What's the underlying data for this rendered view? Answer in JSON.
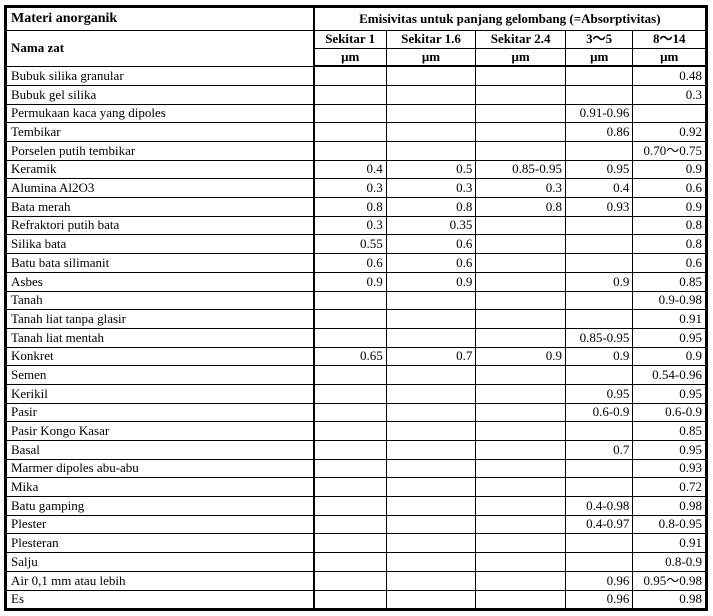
{
  "table": {
    "corner_title": "Materi anorganik",
    "name_header": "Nama zat",
    "span_header": "Emisivitas untuk panjang gelombang (=Absorptivitas)",
    "columns": [
      {
        "label": "Sekitar 1",
        "unit": "μm"
      },
      {
        "label": "Sekitar 1.6",
        "unit": "μm"
      },
      {
        "label": "Sekitar 2.4",
        "unit": "μm"
      },
      {
        "label": "3〜5",
        "unit": "μm"
      },
      {
        "label": "8〜14",
        "unit": "μm"
      }
    ],
    "rows": [
      {
        "name": "Bubuk silika granular",
        "values": [
          "",
          "",
          "",
          "",
          "0.48"
        ]
      },
      {
        "name": "Bubuk gel silika",
        "values": [
          "",
          "",
          "",
          "",
          "0.3"
        ]
      },
      {
        "name": "Permukaan kaca yang dipoles",
        "values": [
          "",
          "",
          "",
          "0.91-0.96",
          ""
        ]
      },
      {
        "name": "Tembikar",
        "values": [
          "",
          "",
          "",
          "0.86",
          "0.92"
        ]
      },
      {
        "name": "Porselen putih tembikar",
        "values": [
          "",
          "",
          "",
          "",
          "0.70〜0.75"
        ]
      },
      {
        "name": "Keramik",
        "values": [
          "0.4",
          "0.5",
          "0.85-0.95",
          "0.95",
          "0.9"
        ]
      },
      {
        "name": "Alumina Al2O3",
        "values": [
          "0.3",
          "0.3",
          "0.3",
          "0.4",
          "0.6"
        ]
      },
      {
        "name": "Bata merah",
        "values": [
          "0.8",
          "0.8",
          "0.8",
          "0.93",
          "0.9"
        ]
      },
      {
        "name": "Refraktori putih bata",
        "values": [
          "0.3",
          "0.35",
          "",
          "",
          "0.8"
        ]
      },
      {
        "name": "Silika bata",
        "values": [
          "0.55",
          "0.6",
          "",
          "",
          "0.8"
        ]
      },
      {
        "name": "Batu bata silimanit",
        "values": [
          "0.6",
          "0.6",
          "",
          "",
          "0.6"
        ]
      },
      {
        "name": "Asbes",
        "values": [
          "0.9",
          "0.9",
          "",
          "0.9",
          "0.85"
        ]
      },
      {
        "name": "Tanah",
        "values": [
          "",
          "",
          "",
          "",
          "0.9-0.98"
        ]
      },
      {
        "name": "Tanah liat tanpa glasir",
        "values": [
          "",
          "",
          "",
          "",
          "0.91"
        ]
      },
      {
        "name": "Tanah liat mentah",
        "values": [
          "",
          "",
          "",
          "0.85-0.95",
          "0.95"
        ]
      },
      {
        "name": "Konkret",
        "values": [
          "0.65",
          "0.7",
          "0.9",
          "0.9",
          "0.9"
        ]
      },
      {
        "name": "Semen",
        "values": [
          "",
          "",
          "",
          "",
          "0.54-0.96"
        ]
      },
      {
        "name": "Kerikil",
        "values": [
          "",
          "",
          "",
          "0.95",
          "0.95"
        ]
      },
      {
        "name": "Pasir",
        "values": [
          "",
          "",
          "",
          "0.6-0.9",
          "0.6-0.9"
        ]
      },
      {
        "name": "Pasir Kongo Kasar",
        "values": [
          "",
          "",
          "",
          "",
          "0.85"
        ]
      },
      {
        "name": "Basal",
        "values": [
          "",
          "",
          "",
          "0.7",
          "0.95"
        ]
      },
      {
        "name": "Marmer dipoles abu-abu",
        "values": [
          "",
          "",
          "",
          "",
          "0.93"
        ]
      },
      {
        "name": "Mika",
        "values": [
          "",
          "",
          "",
          "",
          "0.72"
        ]
      },
      {
        "name": "Batu gamping",
        "values": [
          "",
          "",
          "",
          "0.4-0.98",
          "0.98"
        ]
      },
      {
        "name": "Plester",
        "values": [
          "",
          "",
          "",
          "0.4-0.97",
          "0.8-0.95"
        ]
      },
      {
        "name": "Plesteran",
        "values": [
          "",
          "",
          "",
          "",
          "0.91"
        ]
      },
      {
        "name": "Salju",
        "values": [
          "",
          "",
          "",
          "",
          "0.8-0.9"
        ]
      },
      {
        "name": "Air 0,1 mm atau lebih",
        "values": [
          "",
          "",
          "",
          "0.96",
          "0.95〜0.98"
        ]
      },
      {
        "name": "Es",
        "values": [
          "",
          "",
          "",
          "0.96",
          "0.98"
        ]
      }
    ]
  }
}
